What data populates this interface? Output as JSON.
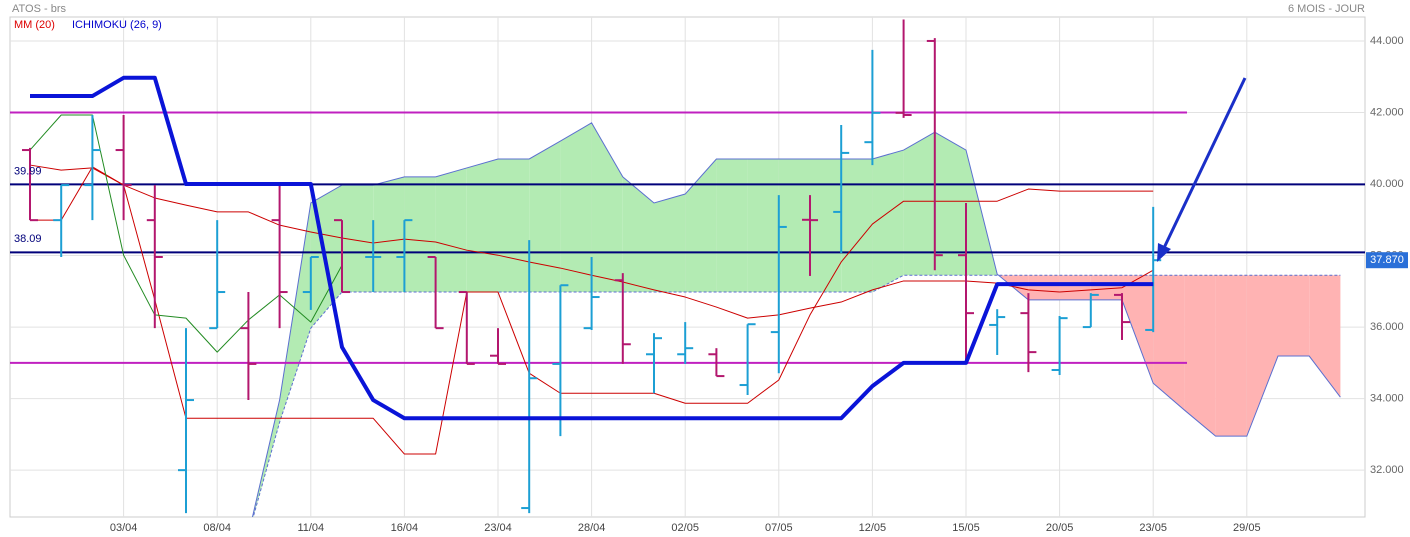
{
  "chart_data": {
    "type": "ohlc",
    "title": "ATOS - brs",
    "period": "6 MOIS - JOUR",
    "legend": [
      {
        "label": "MM (20)",
        "color": "#dd0000"
      },
      {
        "label": "ICHIMOKU (26, 9)",
        "color": "#0000cc"
      }
    ],
    "categories": [
      null,
      null,
      null,
      "03/04",
      null,
      null,
      "08/04",
      null,
      null,
      "11/04",
      null,
      null,
      "16/04",
      null,
      null,
      "23/04",
      null,
      null,
      "28/04",
      null,
      null,
      "02/05",
      null,
      null,
      "07/05",
      null,
      null,
      "12/05",
      null,
      null,
      "15/05",
      null,
      null,
      "20/05",
      null,
      null,
      "23/05",
      null,
      null,
      "29/05",
      null,
      null,
      null,
      null
    ],
    "ylim": [
      30.69,
      44.67
    ],
    "yticks": [
      {
        "value": 32,
        "label": "32.000"
      },
      {
        "value": 34,
        "label": "34.000"
      },
      {
        "value": 36,
        "label": "36.000"
      },
      {
        "value": 38,
        "label": "38.000"
      },
      {
        "value": 40,
        "label": "40.000"
      },
      {
        "value": 42,
        "label": "42.000"
      },
      {
        "value": 44,
        "label": "44.000"
      }
    ],
    "grid": true,
    "ohlc": {
      "up_color": "#1c9fd4",
      "down_color": "#b3176e",
      "open": [
        40.95,
        38.99,
        39.97,
        40.95,
        38.99,
        32.0,
        35.97,
        35.97,
        38.99,
        36.98,
        38.99,
        37.96,
        37.96,
        37.96,
        36.98,
        35.2,
        30.94,
        34.97,
        35.97,
        37.31,
        35.24,
        35.24,
        35.24,
        34.38,
        35.86,
        39.0,
        39.22,
        41.17,
        41.99,
        44.0,
        38.01,
        36.06,
        36.39,
        34.8,
        36.0,
        36.9,
        35.92,
        null,
        null,
        null,
        null,
        null,
        null,
        null
      ],
      "high": [
        41.01,
        39.97,
        41.93,
        41.93,
        39.97,
        35.97,
        38.99,
        36.98,
        39.97,
        37.96,
        38.99,
        38.99,
        38.99,
        37.96,
        36.98,
        35.97,
        38.43,
        37.17,
        37.96,
        37.51,
        35.83,
        36.14,
        35.41,
        36.08,
        39.69,
        39.69,
        41.65,
        43.75,
        44.6,
        44.08,
        39.47,
        36.5,
        36.95,
        36.31,
        36.95,
        36.95,
        39.36,
        null,
        null,
        null,
        null,
        null,
        null,
        null
      ],
      "low": [
        38.99,
        37.96,
        38.99,
        38.99,
        35.97,
        30.8,
        35.97,
        33.96,
        35.97,
        36.48,
        36.98,
        36.98,
        36.98,
        35.97,
        34.97,
        34.97,
        30.8,
        32.95,
        35.92,
        34.97,
        34.15,
        34.97,
        34.63,
        34.1,
        34.71,
        37.43,
        38.07,
        40.53,
        41.85,
        37.59,
        35.02,
        35.22,
        34.74,
        34.66,
        36.0,
        35.64,
        35.86,
        null,
        null,
        null,
        null,
        null,
        null,
        null
      ],
      "close": [
        38.99,
        39.97,
        40.95,
        39.97,
        37.96,
        33.96,
        36.98,
        34.97,
        36.98,
        37.96,
        36.98,
        37.96,
        38.99,
        35.97,
        34.97,
        34.97,
        34.57,
        37.17,
        36.84,
        35.52,
        35.69,
        35.41,
        34.63,
        36.08,
        38.8,
        38.99,
        40.87,
        41.99,
        41.93,
        38.01,
        36.39,
        36.28,
        35.3,
        36.25,
        36.9,
        36.14,
        37.87,
        null,
        null,
        null,
        null,
        null,
        null,
        null
      ]
    },
    "cloud": {
      "up_color": "#b3ebb3",
      "down_color": "#ffb3b3",
      "edge_color": "#5b6fd0",
      "span_a": [
        null,
        null,
        null,
        null,
        null,
        null,
        null,
        30.2,
        33.96,
        39.47,
        39.97,
        39.97,
        40.2,
        40.2,
        40.45,
        40.7,
        40.7,
        41.2,
        41.71,
        40.2,
        39.47,
        39.72,
        40.7,
        40.7,
        40.7,
        40.7,
        40.7,
        40.7,
        40.95,
        41.45,
        40.95,
        37.48,
        36.76,
        36.76,
        36.76,
        36.76,
        34.43,
        33.68,
        32.95,
        32.95,
        35.19,
        35.19,
        34.04,
        null
      ],
      "span_b": [
        null,
        null,
        null,
        null,
        null,
        null,
        null,
        30.2,
        33.34,
        35.97,
        36.98,
        36.98,
        36.98,
        36.98,
        36.98,
        36.98,
        36.98,
        36.98,
        36.98,
        36.98,
        36.98,
        36.98,
        36.98,
        36.98,
        36.98,
        36.98,
        36.98,
        36.98,
        37.45,
        37.45,
        37.45,
        37.45,
        37.45,
        37.45,
        37.45,
        37.45,
        37.45,
        37.45,
        37.45,
        37.45,
        37.45,
        37.45,
        37.45,
        null
      ]
    },
    "lines": [
      {
        "color": "#cc0000",
        "width": 1,
        "values": [
          40.53,
          40.39,
          40.45,
          39.97,
          39.61,
          39.41,
          39.22,
          39.22,
          38.85,
          38.66,
          38.49,
          38.35,
          38.46,
          38.38,
          38.15,
          38.01,
          37.82,
          37.65,
          37.45,
          37.26,
          37.04,
          36.84,
          36.56,
          36.25,
          36.34,
          36.53,
          36.7,
          37.04,
          37.29,
          37.29,
          37.29,
          37.23,
          37.04,
          36.98,
          37.04,
          37.1,
          37.59,
          null,
          null,
          null,
          null,
          null,
          null,
          null
        ]
      },
      {
        "color": "#cc0000",
        "width": 1,
        "values": [
          38.99,
          38.99,
          40.48,
          39.97,
          36.76,
          33.45,
          33.45,
          33.45,
          33.45,
          33.45,
          33.45,
          33.45,
          32.45,
          32.45,
          36.98,
          36.98,
          34.71,
          34.15,
          34.15,
          34.15,
          34.15,
          33.87,
          33.87,
          33.87,
          34.52,
          36.34,
          37.82,
          38.88,
          39.52,
          39.52,
          39.52,
          39.52,
          39.86,
          39.8,
          39.8,
          39.8,
          39.8,
          null,
          null,
          null,
          null,
          null,
          null,
          null
        ]
      },
      {
        "color": "#228b22",
        "width": 1,
        "values": [
          40.95,
          41.93,
          41.93,
          38.01,
          36.34,
          36.25,
          35.3,
          36.2,
          36.9,
          36.14,
          37.73,
          null,
          null,
          null,
          null,
          null,
          null,
          null,
          null,
          null,
          null,
          null,
          null,
          null,
          null,
          null,
          null,
          null,
          null,
          null,
          null,
          null,
          null,
          null,
          null,
          null,
          null,
          null,
          null,
          null,
          null,
          null,
          null,
          null
        ]
      },
      {
        "color": "#0a14d8",
        "width": 4,
        "values": [
          42.46,
          42.46,
          42.46,
          42.97,
          42.97,
          40.0,
          40.0,
          40.0,
          40.0,
          40.0,
          35.44,
          33.96,
          33.45,
          33.45,
          33.45,
          33.45,
          33.45,
          33.45,
          33.45,
          33.45,
          33.45,
          33.45,
          33.45,
          33.45,
          33.45,
          33.45,
          33.45,
          34.35,
          35.0,
          35.0,
          35.0,
          37.2,
          37.2,
          37.2,
          37.2,
          37.2,
          37.2,
          null,
          null,
          null,
          null,
          null,
          null,
          null
        ]
      }
    ],
    "hlines": [
      {
        "value": 42,
        "color": "#c020c0"
      },
      {
        "value": 35,
        "color": "#c020c0"
      },
      {
        "value": 39.99,
        "color": "#00007a"
      },
      {
        "value": 38.09,
        "color": "#00007a"
      }
    ],
    "last_price": {
      "value": 37.87,
      "label": "37.870",
      "color": "#2a6fd8"
    }
  }
}
